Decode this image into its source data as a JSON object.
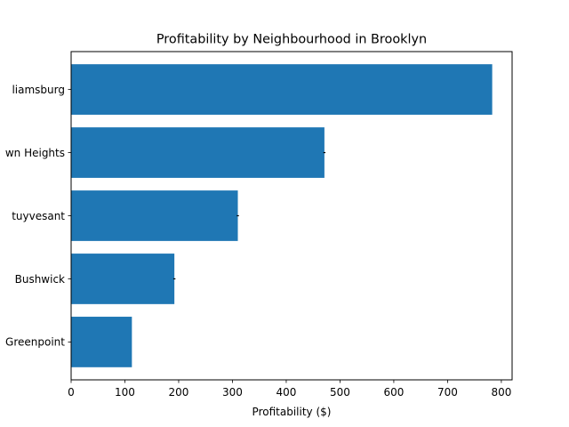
{
  "chart_data": {
    "type": "bar",
    "orientation": "horizontal",
    "title": "Profitability by Neighbourhood in Brooklyn",
    "xlabel": "Profitability ($)",
    "ylabel": "",
    "categories": [
      "Greenpoint",
      "Bushwick",
      "Bedford-Stuyvesant",
      "Crown Heights",
      "Williamsburg"
    ],
    "category_labels_visible": [
      "Greenpoint",
      "Bushwick",
      "tuyvesant",
      "wn Heights",
      "liamsburg"
    ],
    "values": [
      113,
      192,
      310,
      471,
      783
    ],
    "error_bars": [
      0,
      2,
      2,
      2,
      0
    ],
    "xlim": [
      0,
      820
    ],
    "xticks": [
      0,
      100,
      200,
      300,
      400,
      500,
      600,
      700,
      800
    ],
    "grid": false,
    "legend": "none",
    "colors": {
      "bar": "#1f77b4",
      "axis": "#000000",
      "error": "#000000"
    }
  }
}
